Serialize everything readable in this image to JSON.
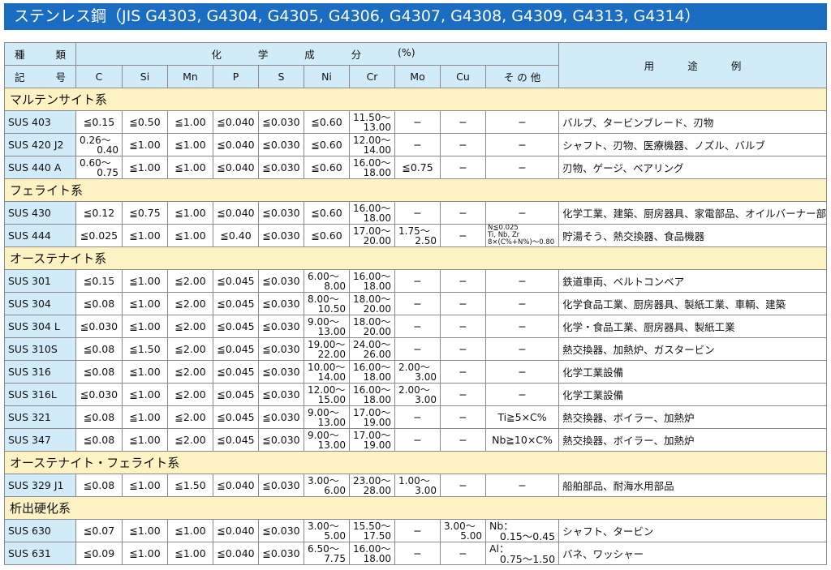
{
  "title": "ステンレス鋼（JIS G4303, G4304, G4305, G4306, G4307, G4308, G4309, G4313, G4314）",
  "header": {
    "type_top": [
      "種",
      "類"
    ],
    "type_bottom": [
      "記",
      "号"
    ],
    "composition": [
      "化",
      "学",
      "成",
      "分",
      "(%)"
    ],
    "columns": [
      "C",
      "Si",
      "Mn",
      "P",
      "S",
      "Ni",
      "Cr",
      "Mo",
      "Cu",
      "そ の 他"
    ],
    "use": [
      "用",
      "途",
      "例"
    ]
  },
  "sections": [
    {
      "name": "マルテンサイト系",
      "rows": [
        {
          "type": "SUS 403",
          "v": [
            "≦0.15",
            "≦0.50",
            "≦1.00",
            "≦0.040",
            "≦0.030",
            "≦0.60",
            [
              "11.50～",
              "13.00"
            ],
            "−",
            "−",
            "−"
          ],
          "use": "バルブ、タービンブレード、刃物"
        },
        {
          "type": "SUS 420 J2",
          "v": [
            [
              "0.26～",
              "0.40"
            ],
            "≦1.00",
            "≦1.00",
            "≦0.040",
            "≦0.030",
            "≦0.60",
            [
              "12.00～",
              "14.00"
            ],
            "−",
            "−",
            "−"
          ],
          "use": "シャフト、刃物、医療機器、ノズル、バルブ"
        },
        {
          "type": "SUS 440 A",
          "v": [
            [
              "0.60～",
              "0.75"
            ],
            "≦1.00",
            "≦1.00",
            "≦0.040",
            "≦0.030",
            "≦0.60",
            [
              "16.00～",
              "18.00"
            ],
            "≦0.75",
            "−",
            "−"
          ],
          "use": "刃物、ゲージ、ベアリング"
        }
      ]
    },
    {
      "name": "フェライト系",
      "rows": [
        {
          "type": "SUS 430",
          "v": [
            "≦0.12",
            "≦0.75",
            "≦1.00",
            "≦0.040",
            "≦0.030",
            "≦0.60",
            [
              "16.00～",
              "18.00"
            ],
            "−",
            "−",
            "−"
          ],
          "use": "化学工業、建築、厨房器具、家電部品、オイルバーナー部品"
        },
        {
          "type": "SUS 444",
          "v": [
            "≦0.025",
            "≦1.00",
            "≦1.00",
            "≦0.40",
            "≦0.030",
            "≦0.60",
            [
              "17.00～",
              "20.00"
            ],
            [
              "1.75～",
              "2.50"
            ],
            "−",
            {
              "small": [
                "N≦0.025",
                "Ti, Nb, Zr",
                "8×(C%+N%)～0.80"
              ]
            }
          ],
          "use": "貯湯そう、熱交換器、食品機器"
        }
      ]
    },
    {
      "name": "オーステナイト系",
      "rows": [
        {
          "type": "SUS 301",
          "v": [
            "≦0.15",
            "≦1.00",
            "≦2.00",
            "≦0.045",
            "≦0.030",
            [
              "6.00～",
              "8.00"
            ],
            [
              "16.00～",
              "18.00"
            ],
            "−",
            "−",
            "−"
          ],
          "use": "鉄道車両、ベルトコンベア"
        },
        {
          "type": "SUS 304",
          "v": [
            "≦0.08",
            "≦1.00",
            "≦2.00",
            "≦0.045",
            "≦0.030",
            [
              "8.00～",
              "10.50"
            ],
            [
              "18.00～",
              "20.00"
            ],
            "−",
            "−",
            "−"
          ],
          "use": "化学食品工業、厨房器具、製紙工業、車輌、建築"
        },
        {
          "type": "SUS 304 L",
          "v": [
            "≦0.030",
            "≦1.00",
            "≦2.00",
            "≦0.045",
            "≦0.030",
            [
              "9.00～",
              "13.00"
            ],
            [
              "18.00～",
              "20.00"
            ],
            "−",
            "−",
            "−"
          ],
          "use": "化学・食品工業、厨房器具、製紙工業"
        },
        {
          "type": "SUS 310S",
          "v": [
            "≦0.08",
            "≦1.50",
            "≦2.00",
            "≦0.045",
            "≦0.030",
            [
              "19.00～",
              "22.00"
            ],
            [
              "24.00～",
              "26.00"
            ],
            "−",
            "−",
            "−"
          ],
          "use": "熱交換器、加熱炉、ガスタービン"
        },
        {
          "type": "SUS 316",
          "v": [
            "≦0.08",
            "≦1.00",
            "≦2.00",
            "≦0.045",
            "≦0.030",
            [
              "10.00～",
              "14.00"
            ],
            [
              "16.00～",
              "18.00"
            ],
            [
              "2.00～",
              "3.00"
            ],
            "−",
            "−"
          ],
          "use": "化学工業設備"
        },
        {
          "type": "SUS 316L",
          "v": [
            "≦0.030",
            "≦1.00",
            "≦2.00",
            "≦0.045",
            "≦0.030",
            [
              "12.00～",
              "15.00"
            ],
            [
              "16.00～",
              "18.00"
            ],
            [
              "2.00～",
              "3.00"
            ],
            "−",
            "−"
          ],
          "use": "化学工業設備"
        },
        {
          "type": "SUS 321",
          "v": [
            "≦0.08",
            "≦1.00",
            "≦2.00",
            "≦0.045",
            "≦0.030",
            [
              "9.00～",
              "13.00"
            ],
            [
              "17.00～",
              "19.00"
            ],
            "−",
            "−",
            "Ti≧5×C%"
          ],
          "use": "熱交換器、ボイラー、加熱炉"
        },
        {
          "type": "SUS 347",
          "v": [
            "≦0.08",
            "≦1.00",
            "≦2.00",
            "≦0.045",
            "≦0.030",
            [
              "9.00～",
              "13.00"
            ],
            [
              "17.00～",
              "19.00"
            ],
            "−",
            "−",
            "Nb≧10×C%"
          ],
          "use": "熱交換器、ボイラー、加熱炉"
        }
      ]
    },
    {
      "name": "オーステナイト・フェライト系",
      "rows": [
        {
          "type": "SUS 329 J1",
          "v": [
            "≦0.08",
            "≦1.00",
            "≦1.50",
            "≦0.040",
            "≦0.030",
            [
              "3.00～",
              "6.00"
            ],
            [
              "23.00～",
              "28.00"
            ],
            [
              "1.00～",
              "3.00"
            ],
            "−",
            "−"
          ],
          "use": "船舶部品、耐海水用部品"
        }
      ]
    },
    {
      "name": "析出硬化系",
      "rows": [
        {
          "type": "SUS 630",
          "v": [
            "≦0.07",
            "≦1.00",
            "≦1.00",
            "≦0.040",
            "≦0.030",
            [
              "3.00～",
              "5.00"
            ],
            [
              "15.50～",
              "17.50"
            ],
            "−",
            [
              "3.00～",
              "5.00"
            ],
            {
              "note": [
                "Nb：",
                "0.15～0.45"
              ]
            }
          ],
          "use": "シャフト、タービン"
        },
        {
          "type": "SUS 631",
          "v": [
            "≦0.09",
            "≦1.00",
            "≦1.00",
            "≦0.040",
            "≦0.030",
            [
              "6.50～",
              "7.75"
            ],
            [
              "16.00～",
              "18.00"
            ],
            "−",
            "−",
            {
              "note": [
                "Al：",
                "0.75～1.50"
              ]
            }
          ],
          "use": "バネ、ワッシャー"
        }
      ]
    }
  ],
  "colors": {
    "title_bg": "#1b6dc1",
    "header_bg": "#d2ebf9",
    "section_bg": "#fdf2c4"
  }
}
